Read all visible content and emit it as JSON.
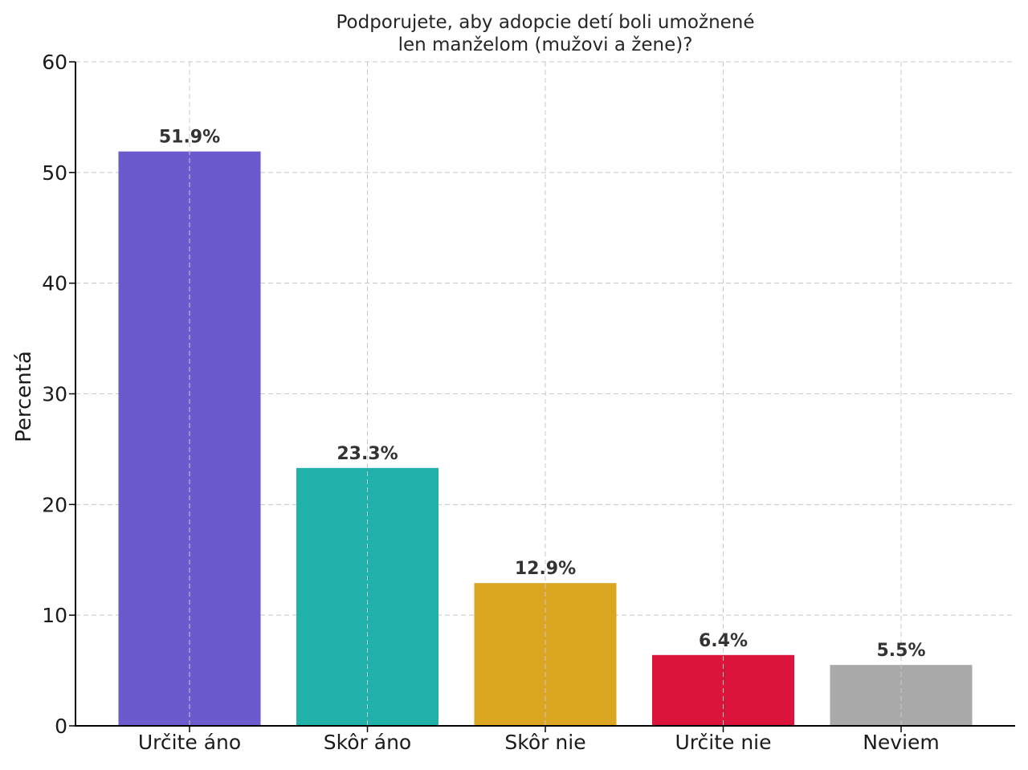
{
  "chart_data": {
    "type": "bar",
    "title_lines": [
      "Podporujete, aby adopcie detí boli umožnené",
      "len manželom (mužovi a žene)?"
    ],
    "xlabel": "",
    "ylabel": "Percentá",
    "categories": [
      "Určite áno",
      "Skôr áno",
      "Skôr nie",
      "Určite nie",
      "Neviem"
    ],
    "values": [
      51.9,
      23.3,
      12.9,
      6.4,
      5.5
    ],
    "value_labels": [
      "51.9%",
      "23.3%",
      "12.9%",
      "6.4%",
      "5.5%"
    ],
    "colors": [
      "#6a5acd",
      "#20b2aa",
      "#daa520",
      "#dc143c",
      "#a9a9a9"
    ],
    "ylim": [
      0,
      60
    ],
    "yticks": [
      0,
      10,
      20,
      30,
      40,
      50,
      60
    ],
    "grid": true
  }
}
